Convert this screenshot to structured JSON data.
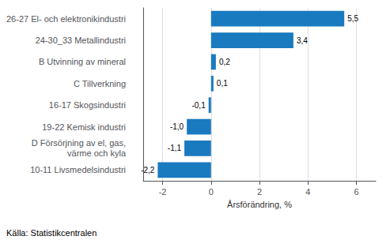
{
  "chart_data": {
    "type": "bar",
    "orientation": "horizontal",
    "categories": [
      "10-11 Livsmedelsindustri",
      "D Försörjning av el, gas,\nvärme och kyla",
      "19-22 Kemisk industri",
      "16-17 Skogsindustri",
      "C Tillverkning",
      "B Utvinning av mineral",
      "24-30_33 Metallindustri",
      "26-27 El- och elektronikindustri"
    ],
    "values": [
      -2.2,
      -1.1,
      -1.0,
      -0.1,
      0.1,
      0.2,
      3.4,
      5.5
    ],
    "value_labels": [
      "-2,2",
      "-1,1",
      "-1,0",
      "-0,1",
      "0,1",
      "0,2",
      "3,4",
      "5,5"
    ],
    "data_labels": true,
    "color": "#1a7abf",
    "xlabel": "Årsförändring, %",
    "xlim": [
      -2.8,
      6.8
    ],
    "xticks": [
      -2,
      0,
      2,
      4,
      6
    ],
    "grid": true,
    "annotations": [
      "Källa: Statistikcentralen"
    ]
  }
}
